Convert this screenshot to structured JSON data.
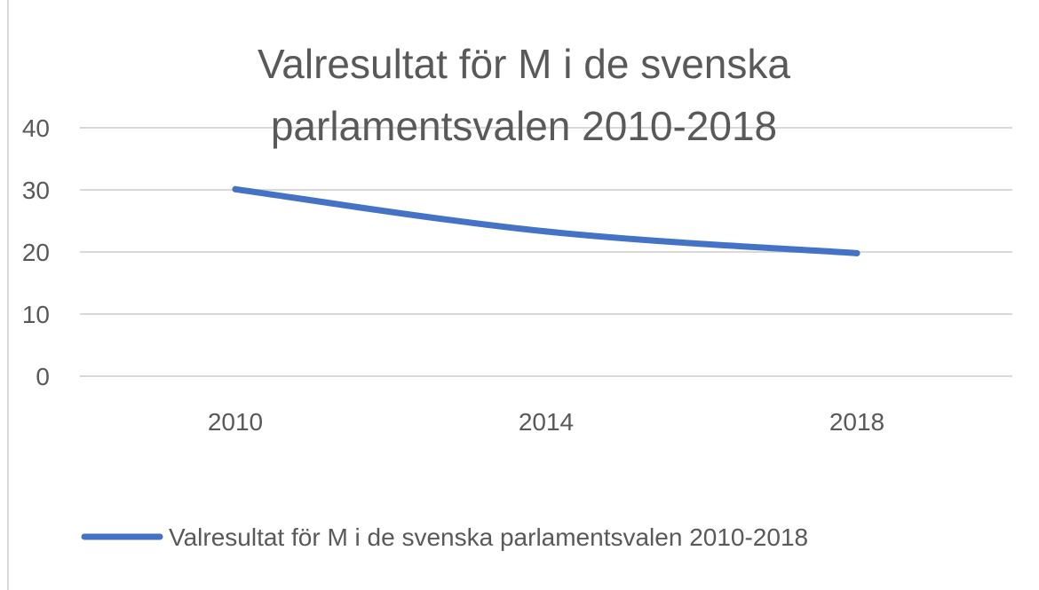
{
  "chart_data": {
    "type": "line",
    "title_lines": [
      "Valresultat för M i de svenska",
      "parlamentsvalen 2010-2018"
    ],
    "categories": [
      "2010",
      "2014",
      "2018"
    ],
    "series": [
      {
        "name": "Valresultat för M i de svenska parlamentsvalen 2010-2018",
        "values": [
          30.1,
          23.3,
          19.8
        ],
        "color": "#4472c4"
      }
    ],
    "ylim": [
      0,
      40
    ],
    "yticks": [
      "0",
      "10",
      "20",
      "30",
      "40"
    ],
    "grid": true,
    "legend_position": "bottom",
    "gridline_color": "#d9d9d9",
    "text_color": "#595959"
  }
}
